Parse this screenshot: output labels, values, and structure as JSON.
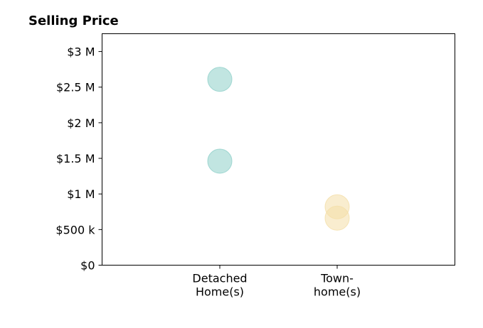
{
  "chart_data": {
    "type": "scatter",
    "title": "Selling Price",
    "xlabel": "",
    "ylabel": "",
    "categories": [
      [
        "Detached",
        "Home(s)"
      ],
      [
        "Town-",
        "home(s)"
      ]
    ],
    "series": [
      {
        "category_index": 0,
        "color": "#8ecfc9",
        "values": [
          2610000,
          1460000
        ]
      },
      {
        "category_index": 1,
        "color": "#f4dfa8",
        "values": [
          820000,
          660000
        ]
      }
    ],
    "ylim": [
      0,
      3250000
    ],
    "yticks": [
      {
        "value": 0,
        "label": "$0"
      },
      {
        "value": 500000,
        "label": "$500 k"
      },
      {
        "value": 1000000,
        "label": "$1 M"
      },
      {
        "value": 1500000,
        "label": "$1.5 M"
      },
      {
        "value": 2000000,
        "label": "$2 M"
      },
      {
        "value": 2500000,
        "label": "$2.5 M"
      },
      {
        "value": 3000000,
        "label": "$3 M"
      }
    ],
    "grid": false,
    "legend": "none"
  }
}
